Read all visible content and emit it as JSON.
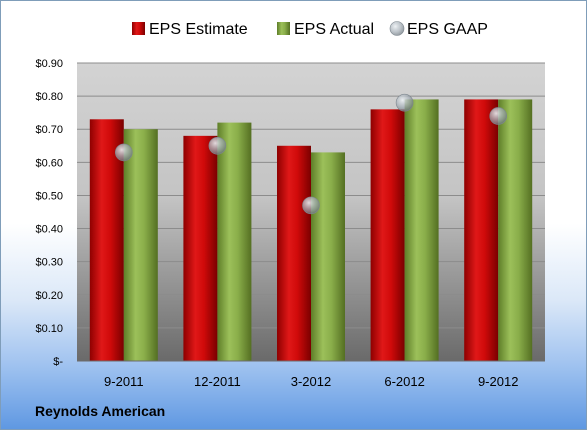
{
  "company": "Reynolds American",
  "chart_data": {
    "type": "bar",
    "categories": [
      "9-2011",
      "12-2011",
      "3-2012",
      "6-2012",
      "9-2012"
    ],
    "series": [
      {
        "name": "EPS Estimate",
        "type": "bar",
        "color": "#cc0000",
        "values": [
          0.73,
          0.68,
          0.65,
          0.76,
          0.79
        ]
      },
      {
        "name": "EPS Actual",
        "type": "bar",
        "color": "#8aae4a",
        "values": [
          0.7,
          0.72,
          0.63,
          0.79,
          0.79
        ]
      },
      {
        "name": "EPS GAAP",
        "type": "scatter",
        "color": "#b8c4cc",
        "values": [
          0.63,
          0.65,
          0.47,
          0.78,
          0.74
        ]
      }
    ],
    "ylim": [
      0,
      0.9
    ],
    "yticks": [
      {
        "value": 0,
        "label": "$-"
      },
      {
        "value": 0.1,
        "label": "$0.10"
      },
      {
        "value": 0.2,
        "label": "$0.20"
      },
      {
        "value": 0.3,
        "label": "$0.30"
      },
      {
        "value": 0.4,
        "label": "$0.40"
      },
      {
        "value": 0.5,
        "label": "$0.50"
      },
      {
        "value": 0.6,
        "label": "$0.60"
      },
      {
        "value": 0.7,
        "label": "$0.70"
      },
      {
        "value": 0.8,
        "label": "$0.80"
      },
      {
        "value": 0.9,
        "label": "$0.90"
      }
    ],
    "grid": true,
    "legend_position": "top"
  }
}
